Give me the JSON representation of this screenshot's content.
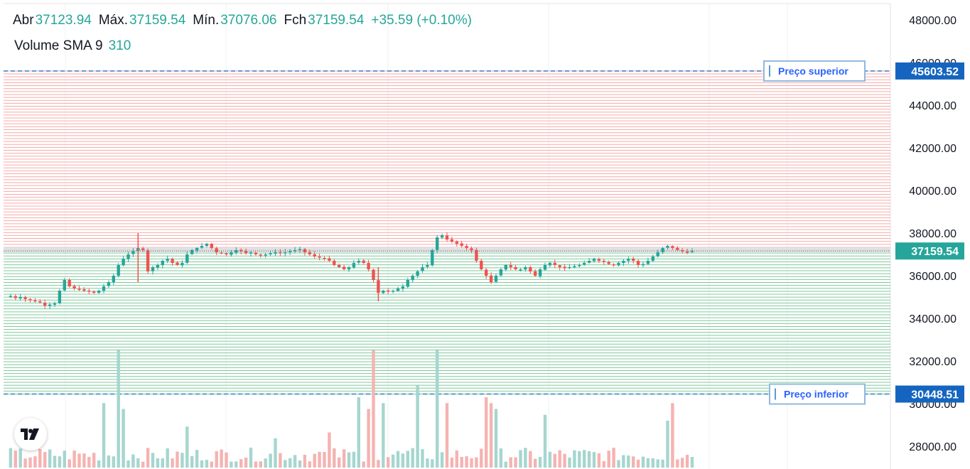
{
  "legend": {
    "open_label": "Abr",
    "open": "37123.94",
    "high_label": "Máx.",
    "high": "37159.54",
    "low_label": "Mín.",
    "low": "37076.06",
    "close_label": "Fch",
    "close": "37159.54",
    "change": "+35.59 (+0.10%)",
    "volume_label": "Volume SMA 9",
    "volume_value": "310"
  },
  "brand": {
    "logo_icon": "tradingview-logo-icon"
  },
  "colors": {
    "up": "#26a69a",
    "down": "#ef5350",
    "grid_upper": "#f7a9a7",
    "grid_lower": "#7fc99a",
    "range_line": "#5b9bd5",
    "range_label": "#2962ff",
    "last_price_bg": "#26a69a"
  },
  "chart_data": {
    "type": "candlestick",
    "y_axis": {
      "ticks": [
        28000,
        30000,
        32000,
        34000,
        36000,
        38000,
        40000,
        42000,
        44000,
        46000,
        48000
      ],
      "tick_labels": [
        "28000.00",
        "30000.00",
        "32000.00",
        "34000.00",
        "36000.00",
        "38000.00",
        "40000.00",
        "42000.00",
        "44000.00",
        "46000.00",
        "48000.00"
      ],
      "range": [
        27600,
        48600
      ]
    },
    "grid_bot": {
      "upper_price": 45603.52,
      "upper_price_label": "45603.52",
      "upper_label": "Preço superior",
      "lower_price": 30448.51,
      "lower_price_label": "30448.51",
      "lower_label": "Preço inferior",
      "grid_count": 110
    },
    "last_price": 37159.54,
    "last_price_label": "37159.54",
    "price_path": [
      35000,
      35050,
      34950,
      35000,
      34900,
      34850,
      34800,
      34750,
      34600,
      34650,
      34700,
      35300,
      35800,
      35500,
      35400,
      35350,
      35300,
      35250,
      35200,
      35300,
      35500,
      35700,
      36000,
      36500,
      36800,
      37000,
      37150,
      37300,
      37200,
      36200,
      36400,
      36500,
      36700,
      36800,
      36600,
      36500,
      36600,
      37000,
      37200,
      37300,
      37400,
      37500,
      37300,
      37100,
      37050,
      37000,
      37100,
      37200,
      37150,
      37050,
      37100,
      37000,
      36950,
      37000,
      37050,
      37100,
      37050,
      37100,
      37150,
      37200,
      37250,
      37100,
      37000,
      36900,
      36850,
      36800,
      36700,
      36500,
      36400,
      36300,
      36400,
      36600,
      36700,
      36600,
      36300,
      35800,
      35200,
      35300,
      35250,
      35300,
      35400,
      35500,
      35800,
      36000,
      36200,
      36400,
      36500,
      37200,
      37800,
      37900,
      37700,
      37600,
      37500,
      37400,
      37300,
      37200,
      36700,
      36300,
      36000,
      35700,
      36000,
      36300,
      36500,
      36400,
      36300,
      36300,
      36400,
      36200,
      36000,
      36300,
      36500,
      36600,
      36500,
      36400,
      36350,
      36400,
      36450,
      36500,
      36600,
      36700,
      36800,
      36700,
      36650,
      36550,
      36500,
      36600,
      36700,
      36800,
      36700,
      36500,
      36550,
      36700,
      36900,
      37100,
      37300,
      37400,
      37300,
      37200,
      37150,
      37100,
      37160
    ],
    "volume_spikes": {
      "20": 0.55,
      "23": 1.0,
      "24": 0.5,
      "37": 0.35,
      "55": 0.25,
      "66": 0.3,
      "72": 0.6,
      "74": 0.5,
      "75": 1.0,
      "77": 0.55,
      "84": 0.7,
      "88": 1.0,
      "90": 0.55,
      "98": 0.6,
      "99": 0.55,
      "100": 0.5,
      "110": 0.45,
      "135": 0.4,
      "136": 0.55
    }
  }
}
